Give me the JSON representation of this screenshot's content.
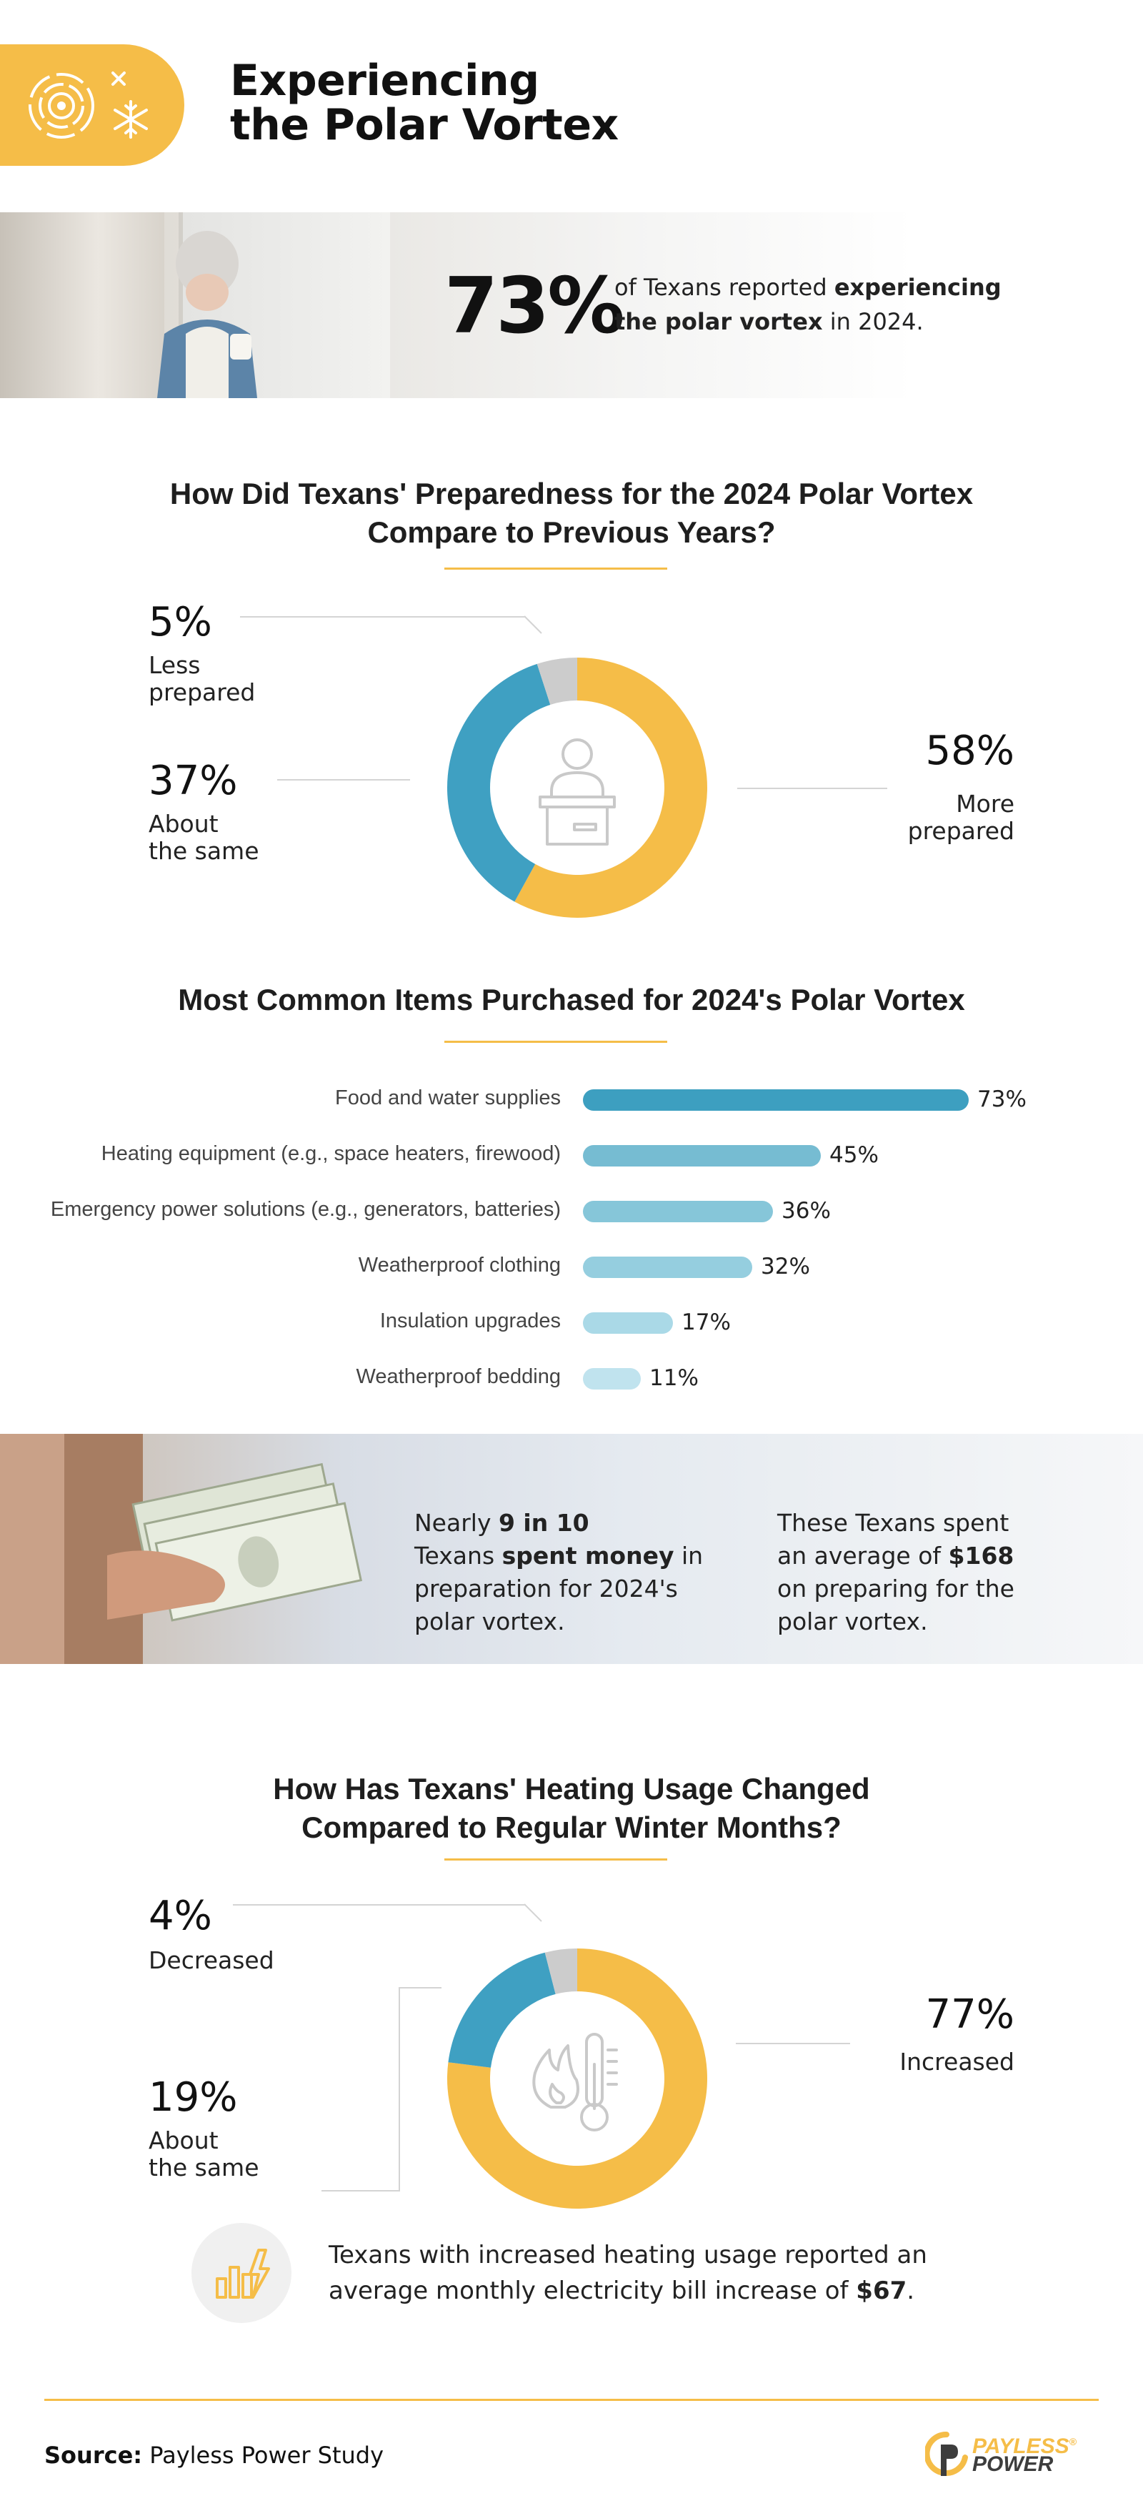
{
  "header": {
    "title_line1": "Experiencing",
    "title_line2": "the Polar Vortex",
    "icons": [
      "target-icon",
      "snowflake-icon"
    ]
  },
  "hero": {
    "stat": "73%",
    "text_pre": "of Texans reported ",
    "text_bold1": "experiencing",
    "text_bold2": "the polar vortex",
    "text_post": " in 2024."
  },
  "preparedness": {
    "title_line1": "How Did Texans' Preparedness for the 2024 Polar Vortex",
    "title_line2": "Compare to Previous Years?",
    "icon": "person-at-desk-icon",
    "slices": [
      {
        "pct": "5%",
        "label_line1": "Less",
        "label_line2": "prepared",
        "value": 5,
        "color": "#cccccc"
      },
      {
        "pct": "37%",
        "label_line1": "About",
        "label_line2": "the same",
        "value": 37,
        "color": "#3fa0c2"
      },
      {
        "pct": "58%",
        "label_line1": "More",
        "label_line2": "prepared",
        "value": 58,
        "color": "#f5bd48"
      }
    ]
  },
  "purchases": {
    "title": "Most Common Items Purchased for 2024's Polar Vortex",
    "items": [
      {
        "label": "Food and water supplies",
        "value": 73,
        "pct": "73%",
        "color": "#3d9fc0"
      },
      {
        "label": "Heating equipment (e.g., space heaters, firewood)",
        "value": 45,
        "pct": "45%",
        "color": "#76bcd2"
      },
      {
        "label": "Emergency power solutions (e.g., generators, batteries)",
        "value": 36,
        "pct": "36%",
        "color": "#86c6d9"
      },
      {
        "label": "Weatherproof clothing",
        "value": 32,
        "pct": "32%",
        "color": "#95cedf"
      },
      {
        "label": "Insulation upgrades",
        "value": 17,
        "pct": "17%",
        "color": "#aad9e7"
      },
      {
        "label": "Weatherproof bedding",
        "value": 11,
        "pct": "11%",
        "color": "#c0e3ee"
      }
    ]
  },
  "money": {
    "left_pre": "Nearly ",
    "left_bold1": "9 in 10",
    "left_mid": "Texans ",
    "left_bold2": "spent money",
    "left_post1": " in",
    "left_line3": "preparation for 2024's",
    "left_line4": "polar vortex.",
    "right_line1": "These Texans spent",
    "right_pre": "an average of ",
    "right_bold": "$168",
    "right_line3": "on preparing for the",
    "right_line4": "polar vortex."
  },
  "heating": {
    "title_line1": "How Has Texans' Heating Usage Changed",
    "title_line2": "Compared to Regular Winter Months?",
    "icon": "flame-thermometer-icon",
    "slices": [
      {
        "pct": "4%",
        "label_line1": "Decreased",
        "label_line2": "",
        "value": 4,
        "color": "#cccccc"
      },
      {
        "pct": "19%",
        "label_line1": "About",
        "label_line2": "the same",
        "value": 19,
        "color": "#3fa0c2"
      },
      {
        "pct": "77%",
        "label_line1": "Increased",
        "label_line2": "",
        "value": 77,
        "color": "#f5bd48"
      }
    ]
  },
  "bill": {
    "icon": "bar-chart-lightning-icon",
    "line1": "Texans with increased heating usage reported an",
    "line2_pre": "average monthly electricity bill increase of ",
    "line2_bold": "$67",
    "line2_post": "."
  },
  "footer": {
    "source_label": "Source:",
    "source_value": " Payless Power Study",
    "logo_line1": "PAYLESS",
    "logo_line2": "POWER",
    "logo_mark": "®"
  }
}
